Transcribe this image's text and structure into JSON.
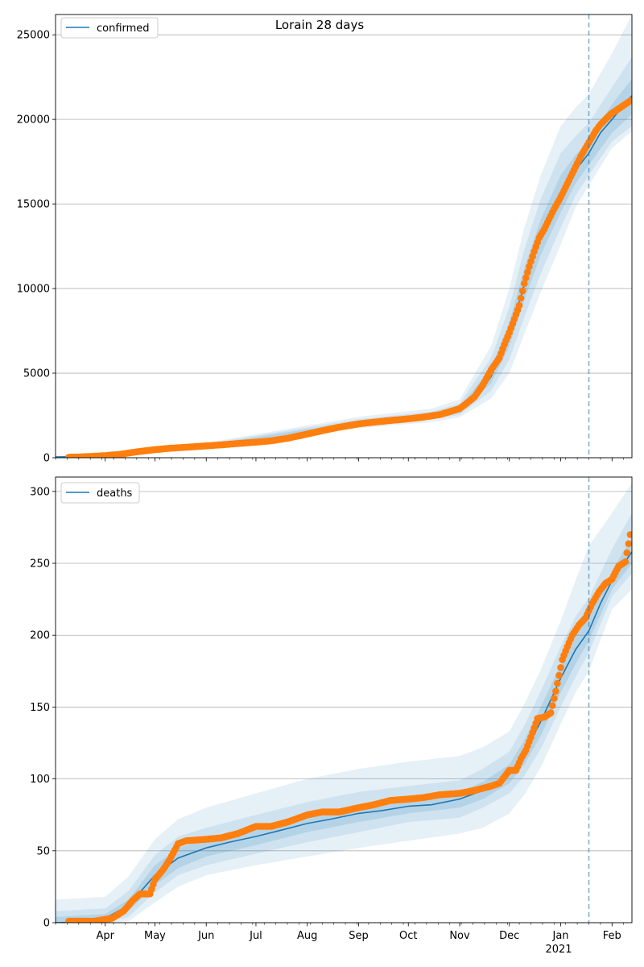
{
  "chart_data": [
    {
      "type": "line",
      "title": "Lorain 28 days",
      "legend_entry": "confirmed",
      "legend_placement": "top-left",
      "grid": "y-major",
      "xlim": [
        "2020-03-02",
        "2021-02-13"
      ],
      "ylim": [
        0,
        26200
      ],
      "yticks": [
        0,
        5000,
        10000,
        15000,
        20000,
        25000
      ],
      "vline_date": "2021-01-18",
      "fit_line": {
        "dates": [
          "2020-03-02",
          "2020-03-20",
          "2020-04-05",
          "2020-04-20",
          "2020-05-01",
          "2020-05-15",
          "2020-06-01",
          "2020-06-15",
          "2020-07-01",
          "2020-07-15",
          "2020-08-01",
          "2020-08-15",
          "2020-09-01",
          "2020-09-15",
          "2020-10-01",
          "2020-10-15",
          "2020-11-01",
          "2020-11-10",
          "2020-11-20",
          "2020-12-01",
          "2020-12-10",
          "2020-12-20",
          "2021-01-01",
          "2021-01-10",
          "2021-01-18",
          "2021-01-25",
          "2021-02-01",
          "2021-02-13"
        ],
        "values": [
          50,
          70,
          120,
          230,
          420,
          600,
          720,
          830,
          950,
          1150,
          1500,
          1800,
          2050,
          2200,
          2330,
          2480,
          2850,
          3400,
          4800,
          7300,
          10200,
          13000,
          15500,
          17000,
          18000,
          19200,
          20000,
          21400
        ]
      },
      "band_inner": {
        "dates": [
          "2020-03-02",
          "2020-06-01",
          "2020-09-01",
          "2020-10-15",
          "2020-11-01",
          "2020-11-20",
          "2020-12-01",
          "2020-12-10",
          "2020-12-20",
          "2021-01-01",
          "2021-01-10",
          "2021-01-18",
          "2021-02-01",
          "2021-02-13"
        ],
        "lower": [
          40,
          680,
          1950,
          2380,
          2700,
          4400,
          6600,
          9300,
          12000,
          14500,
          16200,
          17300,
          19200,
          20300
        ],
        "upper": [
          60,
          760,
          2150,
          2580,
          3000,
          5300,
          8000,
          11200,
          14100,
          16700,
          17900,
          18700,
          20900,
          22400
        ]
      },
      "band_mid": {
        "dates": [
          "2020-03-02",
          "2020-06-01",
          "2020-09-01",
          "2020-10-15",
          "2020-11-01",
          "2020-11-20",
          "2020-12-01",
          "2020-12-10",
          "2020-12-20",
          "2021-01-01",
          "2021-01-10",
          "2021-01-18",
          "2021-02-01",
          "2021-02-13"
        ],
        "lower": [
          30,
          630,
          1850,
          2250,
          2550,
          3950,
          5800,
          8300,
          10900,
          13600,
          15500,
          16700,
          18700,
          19600
        ],
        "upper": [
          70,
          820,
          2280,
          2720,
          3200,
          5900,
          8900,
          12300,
          15300,
          18000,
          19000,
          19800,
          21900,
          23700
        ]
      },
      "band_outer": {
        "dates": [
          "2020-03-02",
          "2020-06-01",
          "2020-09-01",
          "2020-10-15",
          "2020-11-01",
          "2020-11-20",
          "2020-12-01",
          "2020-12-10",
          "2020-12-20",
          "2021-01-01",
          "2021-01-10",
          "2021-01-18",
          "2021-02-01",
          "2021-02-13"
        ],
        "lower": [
          20,
          580,
          1750,
          2100,
          2400,
          3500,
          5000,
          7300,
          9800,
          12600,
          14800,
          16100,
          18300,
          19300
        ],
        "upper": [
          90,
          880,
          2420,
          2900,
          3450,
          6600,
          10000,
          13600,
          16700,
          19600,
          20700,
          21500,
          23900,
          26200
        ]
      },
      "observed": {
        "dates": [
          "2020-03-10",
          "2020-03-20",
          "2020-04-01",
          "2020-04-10",
          "2020-04-20",
          "2020-05-01",
          "2020-05-10",
          "2020-05-20",
          "2020-06-01",
          "2020-06-10",
          "2020-06-20",
          "2020-07-01",
          "2020-07-10",
          "2020-07-20",
          "2020-08-01",
          "2020-08-10",
          "2020-08-20",
          "2020-09-01",
          "2020-09-10",
          "2020-09-20",
          "2020-10-01",
          "2020-10-10",
          "2020-10-20",
          "2020-11-01",
          "2020-11-05",
          "2020-11-10",
          "2020-11-15",
          "2020-11-20",
          "2020-11-25",
          "2020-11-28",
          "2020-12-01",
          "2020-12-04",
          "2020-12-07",
          "2020-12-10",
          "2020-12-13",
          "2020-12-16",
          "2020-12-19",
          "2020-12-22",
          "2020-12-25",
          "2020-12-28",
          "2021-01-01",
          "2021-01-04",
          "2021-01-07",
          "2021-01-10",
          "2021-01-13",
          "2021-01-16",
          "2021-01-19",
          "2021-01-22",
          "2021-01-25",
          "2021-01-28",
          "2021-01-31",
          "2021-02-03",
          "2021-02-06",
          "2021-02-09",
          "2021-02-12"
        ],
        "values": [
          30,
          60,
          120,
          200,
          350,
          480,
          560,
          620,
          700,
          760,
          840,
          920,
          1000,
          1150,
          1400,
          1600,
          1800,
          2000,
          2100,
          2200,
          2300,
          2400,
          2550,
          2900,
          3200,
          3600,
          4300,
          5200,
          5900,
          6700,
          7400,
          8200,
          9000,
          10300,
          11300,
          12200,
          13000,
          13500,
          14100,
          14700,
          15400,
          16000,
          16600,
          17200,
          17800,
          18300,
          18800,
          19300,
          19700,
          20000,
          20300,
          20500,
          20700,
          20900,
          21100
        ]
      }
    },
    {
      "type": "line",
      "legend_entry": "deaths",
      "legend_placement": "top-left",
      "grid": "y-major",
      "xlim": [
        "2020-03-02",
        "2021-02-13"
      ],
      "ylim": [
        0,
        310
      ],
      "yticks": [
        0,
        50,
        100,
        150,
        200,
        250,
        300
      ],
      "xticks": [
        {
          "date": "2020-04-01",
          "label": "Apr"
        },
        {
          "date": "2020-05-01",
          "label": "May"
        },
        {
          "date": "2020-06-01",
          "label": "Jun"
        },
        {
          "date": "2020-07-01",
          "label": "Jul"
        },
        {
          "date": "2020-08-01",
          "label": "Aug"
        },
        {
          "date": "2020-09-01",
          "label": "Sep"
        },
        {
          "date": "2020-10-01",
          "label": "Oct"
        },
        {
          "date": "2020-11-01",
          "label": "Nov"
        },
        {
          "date": "2020-12-01",
          "label": "Dec"
        },
        {
          "date": "2021-01-01",
          "label": "Jan"
        },
        {
          "date": "2021-02-01",
          "label": "Feb"
        }
      ],
      "year_label": "2021",
      "vline_date": "2021-01-18",
      "fit_line": {
        "dates": [
          "2020-03-02",
          "2020-03-20",
          "2020-04-01",
          "2020-04-15",
          "2020-05-01",
          "2020-05-15",
          "2020-06-01",
          "2020-06-15",
          "2020-07-01",
          "2020-07-15",
          "2020-08-01",
          "2020-08-15",
          "2020-09-01",
          "2020-09-15",
          "2020-10-01",
          "2020-10-15",
          "2020-11-01",
          "2020-11-15",
          "2020-12-01",
          "2020-12-10",
          "2020-12-20",
          "2021-01-01",
          "2021-01-10",
          "2021-01-18",
          "2021-01-25",
          "2021-02-01",
          "2021-02-13"
        ],
        "values": [
          0,
          0.5,
          3,
          12,
          33,
          45,
          52,
          56,
          60,
          64,
          69,
          72,
          76,
          78,
          81,
          82,
          86,
          92,
          103,
          118,
          140,
          170,
          190,
          203,
          222,
          238,
          258
        ]
      },
      "band_inner": {
        "dates": [
          "2020-03-02",
          "2020-04-01",
          "2020-04-15",
          "2020-05-01",
          "2020-05-15",
          "2020-06-01",
          "2020-07-01",
          "2020-08-01",
          "2020-09-01",
          "2020-10-01",
          "2020-11-01",
          "2020-11-15",
          "2020-12-01",
          "2020-12-10",
          "2020-12-20",
          "2021-01-01",
          "2021-01-10",
          "2021-01-18",
          "2021-02-01",
          "2021-02-13"
        ],
        "lower": [
          0,
          1,
          8,
          26,
          38,
          46,
          54,
          63,
          70,
          76,
          80,
          86,
          97,
          110,
          130,
          160,
          180,
          196,
          232,
          250
        ],
        "upper": [
          4,
          6,
          16,
          40,
          52,
          58,
          66,
          75,
          82,
          86,
          91,
          98,
          110,
          127,
          150,
          180,
          200,
          212,
          245,
          268
        ]
      },
      "band_mid": {
        "dates": [
          "2020-03-02",
          "2020-04-01",
          "2020-04-15",
          "2020-05-01",
          "2020-05-15",
          "2020-06-01",
          "2020-07-01",
          "2020-08-01",
          "2020-09-01",
          "2020-10-01",
          "2020-11-01",
          "2020-11-15",
          "2020-12-01",
          "2020-12-10",
          "2020-12-20",
          "2021-01-01",
          "2021-01-10",
          "2021-01-18",
          "2021-02-01",
          "2021-02-13"
        ],
        "lower": [
          0,
          0,
          4,
          21,
          33,
          40,
          48,
          56,
          63,
          70,
          73,
          80,
          90,
          102,
          121,
          150,
          171,
          188,
          227,
          243
        ],
        "upper": [
          8,
          10,
          22,
          47,
          60,
          66,
          75,
          84,
          91,
          95,
          99,
          107,
          119,
          137,
          161,
          192,
          213,
          226,
          260,
          285
        ]
      },
      "band_outer": {
        "dates": [
          "2020-03-02",
          "2020-04-01",
          "2020-04-15",
          "2020-05-01",
          "2020-05-15",
          "2020-06-01",
          "2020-07-01",
          "2020-08-01",
          "2020-09-01",
          "2020-10-01",
          "2020-11-01",
          "2020-11-15",
          "2020-12-01",
          "2020-12-10",
          "2020-12-20",
          "2021-01-01",
          "2021-01-10",
          "2021-01-18",
          "2021-02-01",
          "2021-02-13"
        ],
        "lower": [
          0,
          0,
          1,
          14,
          25,
          33,
          40,
          46,
          52,
          57,
          62,
          66,
          76,
          89,
          108,
          138,
          160,
          175,
          218,
          232
        ],
        "upper": [
          16,
          18,
          32,
          58,
          72,
          80,
          90,
          100,
          107,
          112,
          116,
          122,
          133,
          152,
          176,
          210,
          238,
          262,
          285,
          306
        ]
      },
      "observed": {
        "dates": [
          "2020-03-10",
          "2020-03-25",
          "2020-04-05",
          "2020-04-12",
          "2020-04-18",
          "2020-04-22",
          "2020-04-28",
          "2020-05-01",
          "2020-05-06",
          "2020-05-10",
          "2020-05-15",
          "2020-05-20",
          "2020-06-01",
          "2020-06-10",
          "2020-06-20",
          "2020-07-01",
          "2020-07-10",
          "2020-07-20",
          "2020-08-01",
          "2020-08-10",
          "2020-08-20",
          "2020-09-01",
          "2020-09-10",
          "2020-09-20",
          "2020-10-01",
          "2020-10-10",
          "2020-10-20",
          "2020-11-01",
          "2020-11-10",
          "2020-11-20",
          "2020-11-25",
          "2020-12-01",
          "2020-12-05",
          "2020-12-08",
          "2020-12-11",
          "2020-12-14",
          "2020-12-18",
          "2020-12-22",
          "2020-12-26",
          "2020-12-29",
          "2021-01-02",
          "2021-01-05",
          "2021-01-08",
          "2021-01-12",
          "2021-01-16",
          "2021-01-20",
          "2021-01-24",
          "2021-01-28",
          "2021-02-01",
          "2021-02-05",
          "2021-02-09",
          "2021-02-12"
        ],
        "values": [
          1,
          1,
          3,
          8,
          16,
          20,
          20,
          30,
          37,
          44,
          55,
          57,
          58,
          59,
          62,
          67,
          67,
          70,
          75,
          77,
          77,
          80,
          82,
          85,
          86,
          87,
          89,
          90,
          92,
          95,
          97,
          106,
          106,
          114,
          120,
          129,
          142,
          143,
          146,
          161,
          183,
          192,
          200,
          207,
          212,
          222,
          230,
          236,
          239,
          248,
          251,
          270
        ]
      }
    }
  ]
}
